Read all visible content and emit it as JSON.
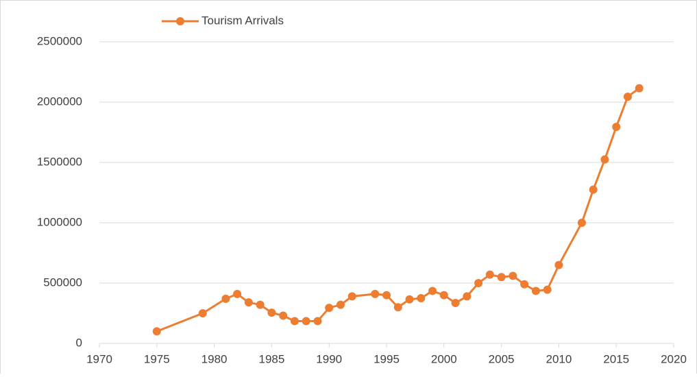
{
  "chart_data": {
    "type": "line",
    "x": [
      1975,
      1979,
      1981,
      1982,
      1983,
      1984,
      1985,
      1986,
      1987,
      1988,
      1989,
      1990,
      1991,
      1992,
      1994,
      1995,
      1996,
      1997,
      1998,
      1999,
      2000,
      2001,
      2002,
      2003,
      2004,
      2005,
      2006,
      2007,
      2008,
      2009,
      2010,
      2012,
      2013,
      2014,
      2015,
      2016,
      2017
    ],
    "series": [
      {
        "name": "Tourism Arrivals",
        "color": "#ed7d31",
        "values": [
          100000,
          250000,
          370000,
          410000,
          340000,
          320000,
          255000,
          230000,
          185000,
          185000,
          185000,
          295000,
          320000,
          390000,
          410000,
          400000,
          300000,
          365000,
          375000,
          435000,
          400000,
          335000,
          390000,
          500000,
          570000,
          550000,
          560000,
          490000,
          435000,
          445000,
          650000,
          1000000,
          1275000,
          1525000,
          1795000,
          2045000,
          2115000
        ]
      }
    ],
    "xlim": [
      1970,
      2020
    ],
    "xticks": [
      1970,
      1975,
      1980,
      1985,
      1990,
      1995,
      2000,
      2005,
      2010,
      2015,
      2020
    ],
    "ylim": [
      0,
      2500000
    ],
    "yticks": [
      0,
      500000,
      1000000,
      1500000,
      2000000,
      2500000
    ],
    "grid": true,
    "legend": "top"
  }
}
